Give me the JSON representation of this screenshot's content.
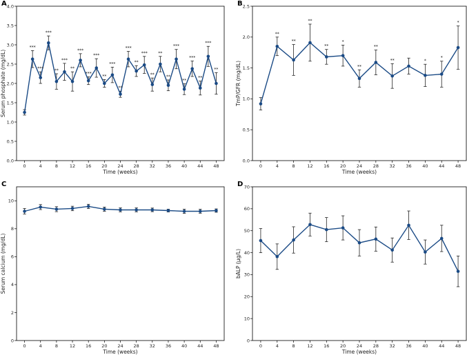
{
  "colors": {
    "line": "#1a4a85",
    "err": "#222222",
    "axis": "#000000"
  },
  "chart_data": [
    {
      "type": "line",
      "panel": "A",
      "xlabel": "Time (weeks)",
      "ylabel": "Serum phosphate (mg/dL)",
      "xlim": [
        -2,
        50
      ],
      "ylim": [
        0,
        4.0
      ],
      "yticks": [
        "0.0",
        "0.5",
        "1.0",
        "1.5",
        "2.0",
        "2.5",
        "3.0",
        "3.5",
        "4.0"
      ],
      "ytick_values": [
        0,
        0.5,
        1,
        1.5,
        2,
        2.5,
        3,
        3.5,
        4
      ],
      "xticks": [
        "0",
        "4",
        "8",
        "12",
        "16",
        "20",
        "24",
        "28",
        "32",
        "36",
        "40",
        "44",
        "48"
      ],
      "x": [
        0,
        2,
        4,
        6,
        8,
        10,
        12,
        14,
        16,
        18,
        20,
        22,
        24,
        26,
        28,
        30,
        32,
        34,
        36,
        38,
        40,
        42,
        44,
        46,
        48
      ],
      "y": [
        1.25,
        2.63,
        2.15,
        3.05,
        2.05,
        2.3,
        2.05,
        2.6,
        2.07,
        2.4,
        2.0,
        2.22,
        1.72,
        2.63,
        2.32,
        2.48,
        1.97,
        2.5,
        1.95,
        2.63,
        1.85,
        2.38,
        1.88,
        2.7,
        2.0
      ],
      "err": [
        0.07,
        0.22,
        0.15,
        0.18,
        0.2,
        0.22,
        0.25,
        0.17,
        0.1,
        0.24,
        0.1,
        0.2,
        0.08,
        0.2,
        0.14,
        0.22,
        0.17,
        0.2,
        0.14,
        0.25,
        0.14,
        0.2,
        0.18,
        0.26,
        0.28
      ],
      "sig": [
        "",
        "***",
        "***",
        "***",
        "**",
        "***",
        "**",
        "***",
        "***",
        "***",
        "**",
        "***",
        "**",
        "***",
        "**",
        "***",
        "**",
        "**",
        "**",
        "***",
        "**",
        "***",
        "**",
        "***",
        "**"
      ]
    },
    {
      "type": "line",
      "panel": "B",
      "xlabel": "Time (weeks)",
      "ylabel": "TmP/GFR (mg/dL)",
      "xlim": [
        -2,
        50
      ],
      "ylim": [
        0,
        2.5
      ],
      "yticks": [
        "0.0",
        "0.5",
        "1.0",
        "1.5",
        "2.0",
        "2.5"
      ],
      "ytick_values": [
        0,
        0.5,
        1,
        1.5,
        2,
        2.5
      ],
      "xticks": [
        "0",
        "4",
        "8",
        "12",
        "16",
        "20",
        "24",
        "28",
        "32",
        "36",
        "40",
        "44",
        "48"
      ],
      "x": [
        0,
        4,
        8,
        12,
        16,
        20,
        24,
        28,
        32,
        36,
        40,
        44,
        48
      ],
      "y": [
        0.92,
        1.85,
        1.63,
        1.91,
        1.68,
        1.7,
        1.33,
        1.59,
        1.37,
        1.53,
        1.38,
        1.4,
        1.83
      ],
      "err": [
        0.1,
        0.15,
        0.25,
        0.3,
        0.12,
        0.17,
        0.14,
        0.2,
        0.2,
        0.13,
        0.18,
        0.21,
        0.35
      ],
      "sig": [
        "",
        "**",
        "**",
        "**",
        "**",
        "*",
        "**",
        "**",
        "**",
        "",
        "*",
        "*",
        "*"
      ]
    },
    {
      "type": "line",
      "panel": "C",
      "xlabel": "Time (weeks)",
      "ylabel": "Serum calcium (mg/dL)",
      "xlim": [
        -2,
        50
      ],
      "ylim": [
        0,
        11
      ],
      "yticks": [
        "0",
        "2",
        "4",
        "6",
        "8",
        "10"
      ],
      "ytick_values": [
        0,
        2,
        4,
        6,
        8,
        10
      ],
      "xticks": [
        "0",
        "4",
        "8",
        "12",
        "16",
        "20",
        "24",
        "28",
        "32",
        "36",
        "40",
        "44",
        "48"
      ],
      "x": [
        0,
        4,
        8,
        12,
        16,
        20,
        24,
        28,
        32,
        36,
        40,
        44,
        48
      ],
      "y": [
        9.25,
        9.55,
        9.4,
        9.45,
        9.6,
        9.4,
        9.35,
        9.35,
        9.35,
        9.3,
        9.25,
        9.25,
        9.3
      ],
      "err": [
        0.2,
        0.18,
        0.18,
        0.16,
        0.15,
        0.15,
        0.14,
        0.14,
        0.13,
        0.1,
        0.15,
        0.14,
        0.12
      ],
      "sig": [
        "",
        "",
        "",
        "",
        "",
        "",
        "",
        "",
        "",
        "",
        "",
        "",
        ""
      ]
    },
    {
      "type": "line",
      "panel": "D",
      "xlabel": "Time (weeks)",
      "ylabel": "bALP (µg/L)",
      "xlim": [
        -2,
        50
      ],
      "ylim": [
        0,
        70
      ],
      "yticks": [
        "0",
        "10",
        "20",
        "30",
        "40",
        "50",
        "60",
        "70"
      ],
      "ytick_values": [
        0,
        10,
        20,
        30,
        40,
        50,
        60,
        70
      ],
      "xticks": [
        "0",
        "4",
        "8",
        "12",
        "16",
        "20",
        "24",
        "28",
        "32",
        "36",
        "40",
        "44",
        "48"
      ],
      "x": [
        0,
        4,
        8,
        12,
        16,
        20,
        24,
        28,
        32,
        36,
        40,
        44,
        48
      ],
      "y": [
        45.5,
        38.2,
        45.8,
        52.8,
        50.5,
        51.3,
        44.5,
        46.2,
        41.2,
        52.5,
        40.3,
        46.5,
        31.5
      ],
      "err": [
        5.5,
        5.8,
        6.0,
        5.2,
        5.5,
        5.5,
        6.0,
        5.5,
        5.5,
        6.5,
        5.5,
        6.0,
        7.0
      ],
      "sig": [
        "",
        "",
        "",
        "",
        "",
        "",
        "",
        "",
        "",
        "",
        "",
        "",
        ""
      ]
    }
  ]
}
